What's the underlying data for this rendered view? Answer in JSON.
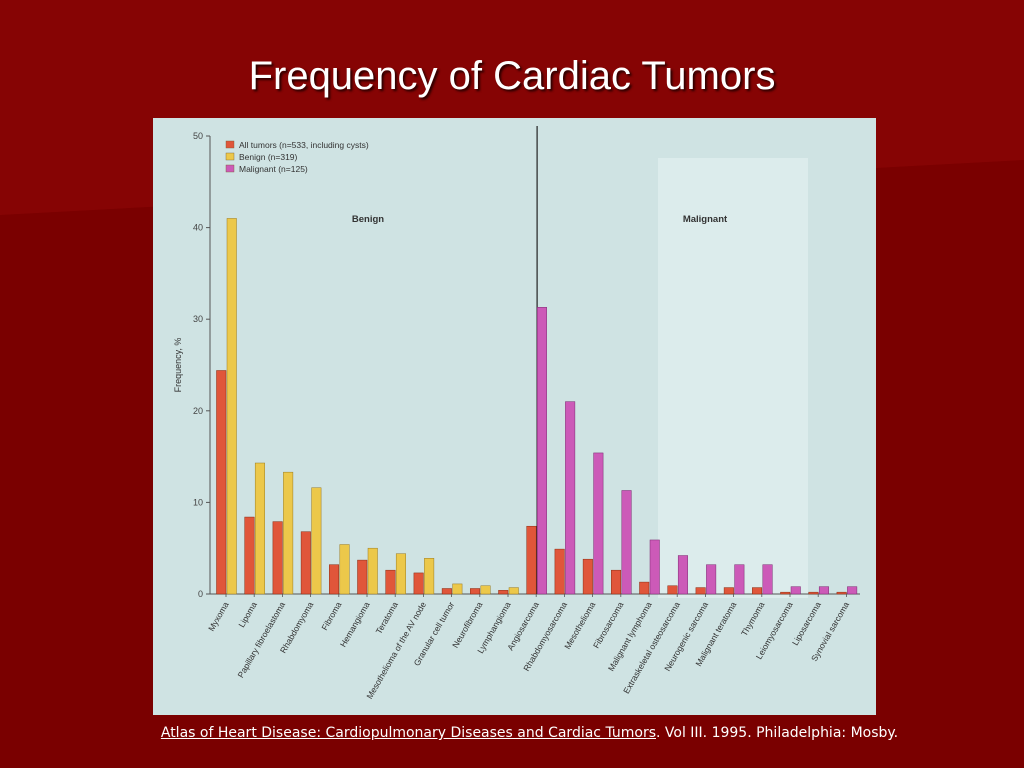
{
  "slide": {
    "title": "Frequency of Cardiac Tumors",
    "citation_link": "Atlas of Heart Disease: Cardiopulmonary Diseases and Cardiac Tumors",
    "citation_rest": ". Vol III. 1995. Philadelphia: Mosby."
  },
  "colors": {
    "background": "#7a0000",
    "panel": "#cfe3e3",
    "all_tumors": "#e0563a",
    "benign": "#ecc84a",
    "malignant": "#cc5ab8"
  },
  "chart_data": {
    "type": "bar",
    "ylabel": "Frequency, %",
    "ylim": [
      0,
      50
    ],
    "yticks": [
      0,
      10,
      20,
      30,
      40,
      50
    ],
    "grid": false,
    "legend_position": "top-left",
    "sections": [
      {
        "label": "Benign",
        "start": 0,
        "end": 10
      },
      {
        "label": "Malignant",
        "start": 11,
        "end": 22
      }
    ],
    "categories": [
      "Myxoma",
      "Lipoma",
      "Papillary fibroelastoma",
      "Rhabdomyoma",
      "Fibroma",
      "Hemangioma",
      "Teratoma",
      "Mesothelioma of the AV node",
      "Granular cell tumor",
      "Neurofibroma",
      "Lymphangioma",
      "Angiosarcoma",
      "Rhabdomyosarcoma",
      "Mesothelioma",
      "Fibrosarcoma",
      "Malignant lymphoma",
      "Extraskeletal osteosarcoma",
      "Neurogenic sarcoma",
      "Malignant teratoma",
      "Thymoma",
      "Leiomyosarcoma",
      "Liposarcoma",
      "Synovial sarcoma"
    ],
    "series": [
      {
        "name": "All tumors (n=533, including cysts)",
        "values": [
          24.4,
          8.4,
          7.9,
          6.8,
          3.2,
          3.7,
          2.6,
          2.3,
          0.6,
          0.6,
          0.4,
          7.4,
          4.9,
          3.8,
          2.6,
          1.3,
          0.9,
          0.7,
          0.7,
          0.7,
          0.2,
          0.2,
          0.2
        ]
      },
      {
        "name": "Benign (n=319)",
        "values": [
          41.0,
          14.3,
          13.3,
          11.6,
          5.4,
          5.0,
          4.4,
          3.9,
          1.1,
          0.9,
          0.7,
          null,
          null,
          null,
          null,
          null,
          null,
          null,
          null,
          null,
          null,
          null,
          null
        ]
      },
      {
        "name": "Malignant (n=125)",
        "values": [
          null,
          null,
          null,
          null,
          null,
          null,
          null,
          null,
          null,
          null,
          null,
          31.3,
          21.0,
          15.4,
          11.3,
          5.9,
          4.2,
          3.2,
          3.2,
          3.2,
          0.8,
          0.8,
          0.8
        ]
      }
    ]
  }
}
